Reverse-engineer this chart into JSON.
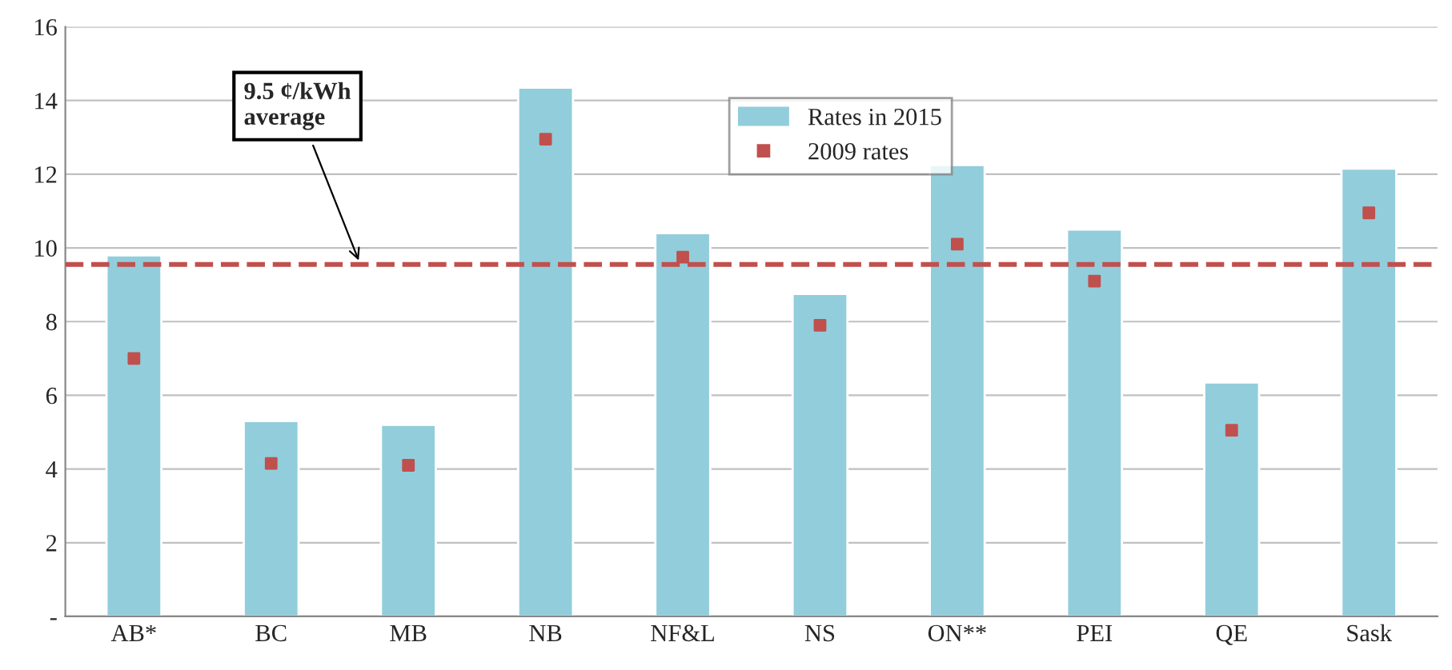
{
  "chart_data": {
    "type": "bar",
    "categories": [
      "AB*",
      "BC",
      "MB",
      "NB",
      "NF&L",
      "NS",
      "ON**",
      "PEI",
      "QE",
      "Sask"
    ],
    "series": [
      {
        "name": "Rates in 2015",
        "type": "bar",
        "color": "#92cddc",
        "values": [
          9.8,
          5.3,
          5.2,
          14.35,
          10.4,
          8.75,
          12.25,
          10.5,
          6.35,
          12.15
        ]
      },
      {
        "name": "2009 rates",
        "type": "scatter",
        "color": "#c0504d",
        "marker": "square",
        "values": [
          7.0,
          4.15,
          4.1,
          12.95,
          9.75,
          7.9,
          10.1,
          9.1,
          5.05,
          10.95
        ]
      }
    ],
    "ylim": [
      0,
      16
    ],
    "yticks": [
      {
        "value": 0,
        "label": "-"
      },
      2,
      4,
      6,
      8,
      10,
      12,
      14,
      16
    ],
    "grid": "y",
    "legend": "top",
    "ref_lines": [
      {
        "axis": "y",
        "value": 9.55,
        "label": "9.5 ¢/kWh\naverage",
        "color": "#c0504d",
        "line_style": "dashed"
      }
    ]
  }
}
